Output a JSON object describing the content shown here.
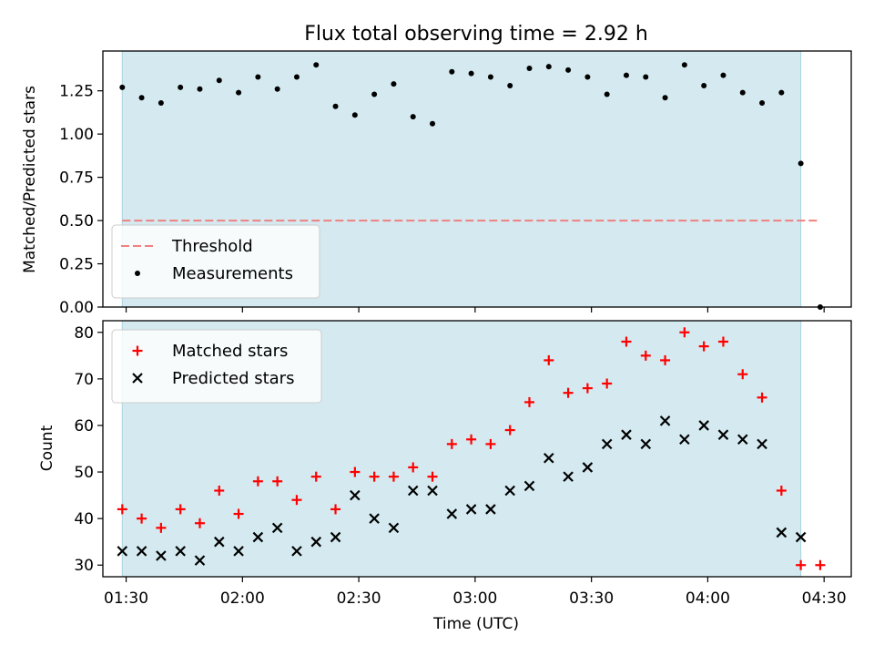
{
  "chart_data": {
    "title": "Flux total observing time = 2.92 h",
    "xlabel": "Time (UTC)",
    "x_ticks": [
      "01:30",
      "02:00",
      "02:30",
      "03:00",
      "03:30",
      "04:00",
      "04:30"
    ],
    "xlim": [
      "01:24",
      "04:37"
    ],
    "observing_window": [
      "01:29",
      "04:24"
    ],
    "window_color": "#d4eaf0",
    "panels": [
      {
        "type": "scatter",
        "ylabel": "Matched/Predicted stars",
        "ylim": [
          0,
          1.48
        ],
        "yticks": [
          "0.00",
          "0.25",
          "0.50",
          "0.75",
          "1.00",
          "1.25"
        ],
        "legend_position": "lower-left",
        "threshold": {
          "name": "Threshold",
          "value": 0.5,
          "color": "#f08080",
          "x_range": [
            "01:29",
            "04:29"
          ]
        },
        "series": [
          {
            "name": "Measurements",
            "color": "#000000",
            "marker": "dot",
            "x": [
              "01:29",
              "01:34",
              "01:39",
              "01:44",
              "01:49",
              "01:54",
              "01:59",
              "02:04",
              "02:09",
              "02:14",
              "02:19",
              "02:24",
              "02:29",
              "02:34",
              "02:39",
              "02:44",
              "02:49",
              "02:54",
              "02:59",
              "03:04",
              "03:09",
              "03:14",
              "03:19",
              "03:24",
              "03:29",
              "03:34",
              "03:39",
              "03:44",
              "03:49",
              "03:54",
              "03:59",
              "04:04",
              "04:09",
              "04:14",
              "04:19",
              "04:24",
              "04:29"
            ],
            "values": [
              1.27,
              1.21,
              1.18,
              1.27,
              1.26,
              1.31,
              1.24,
              1.33,
              1.26,
              1.33,
              1.4,
              1.16,
              1.11,
              1.23,
              1.29,
              1.1,
              1.06,
              1.36,
              1.35,
              1.33,
              1.28,
              1.38,
              1.39,
              1.37,
              1.33,
              1.23,
              1.34,
              1.33,
              1.21,
              1.4,
              1.28,
              1.34,
              1.24,
              1.18,
              1.24,
              0.83,
              0.0
            ]
          }
        ]
      },
      {
        "type": "scatter",
        "ylabel": "Count",
        "ylim": [
          27.5,
          82.5
        ],
        "yticks": [
          "30",
          "40",
          "50",
          "60",
          "70",
          "80"
        ],
        "legend_position": "upper-left",
        "series": [
          {
            "name": "Matched stars",
            "color": "#ff0000",
            "marker": "plus",
            "x": [
              "01:29",
              "01:34",
              "01:39",
              "01:44",
              "01:49",
              "01:54",
              "01:59",
              "02:04",
              "02:09",
              "02:14",
              "02:19",
              "02:24",
              "02:29",
              "02:34",
              "02:39",
              "02:44",
              "02:49",
              "02:54",
              "02:59",
              "03:04",
              "03:09",
              "03:14",
              "03:19",
              "03:24",
              "03:29",
              "03:34",
              "03:39",
              "03:44",
              "03:49",
              "03:54",
              "03:59",
              "04:04",
              "04:09",
              "04:14",
              "04:19",
              "04:24",
              "04:29"
            ],
            "values": [
              42,
              40,
              38,
              42,
              39,
              46,
              41,
              48,
              48,
              44,
              49,
              42,
              50,
              49,
              49,
              51,
              49,
              56,
              57,
              56,
              59,
              65,
              74,
              67,
              68,
              69,
              78,
              75,
              74,
              80,
              77,
              78,
              71,
              66,
              46,
              30,
              30
            ]
          },
          {
            "name": "Predicted stars",
            "color": "#000000",
            "marker": "x",
            "x": [
              "01:29",
              "01:34",
              "01:39",
              "01:44",
              "01:49",
              "01:54",
              "01:59",
              "02:04",
              "02:09",
              "02:14",
              "02:19",
              "02:24",
              "02:29",
              "02:34",
              "02:39",
              "02:44",
              "02:49",
              "02:54",
              "02:59",
              "03:04",
              "03:09",
              "03:14",
              "03:19",
              "03:24",
              "03:29",
              "03:34",
              "03:39",
              "03:44",
              "03:49",
              "03:54",
              "03:59",
              "04:04",
              "04:09",
              "04:14",
              "04:19",
              "04:24"
            ],
            "values": [
              33,
              33,
              32,
              33,
              31,
              35,
              33,
              36,
              38,
              33,
              35,
              36,
              45,
              40,
              38,
              46,
              46,
              41,
              42,
              42,
              46,
              47,
              53,
              49,
              51,
              56,
              58,
              56,
              61,
              57,
              60,
              58,
              57,
              56,
              37,
              36
            ]
          }
        ]
      }
    ]
  }
}
